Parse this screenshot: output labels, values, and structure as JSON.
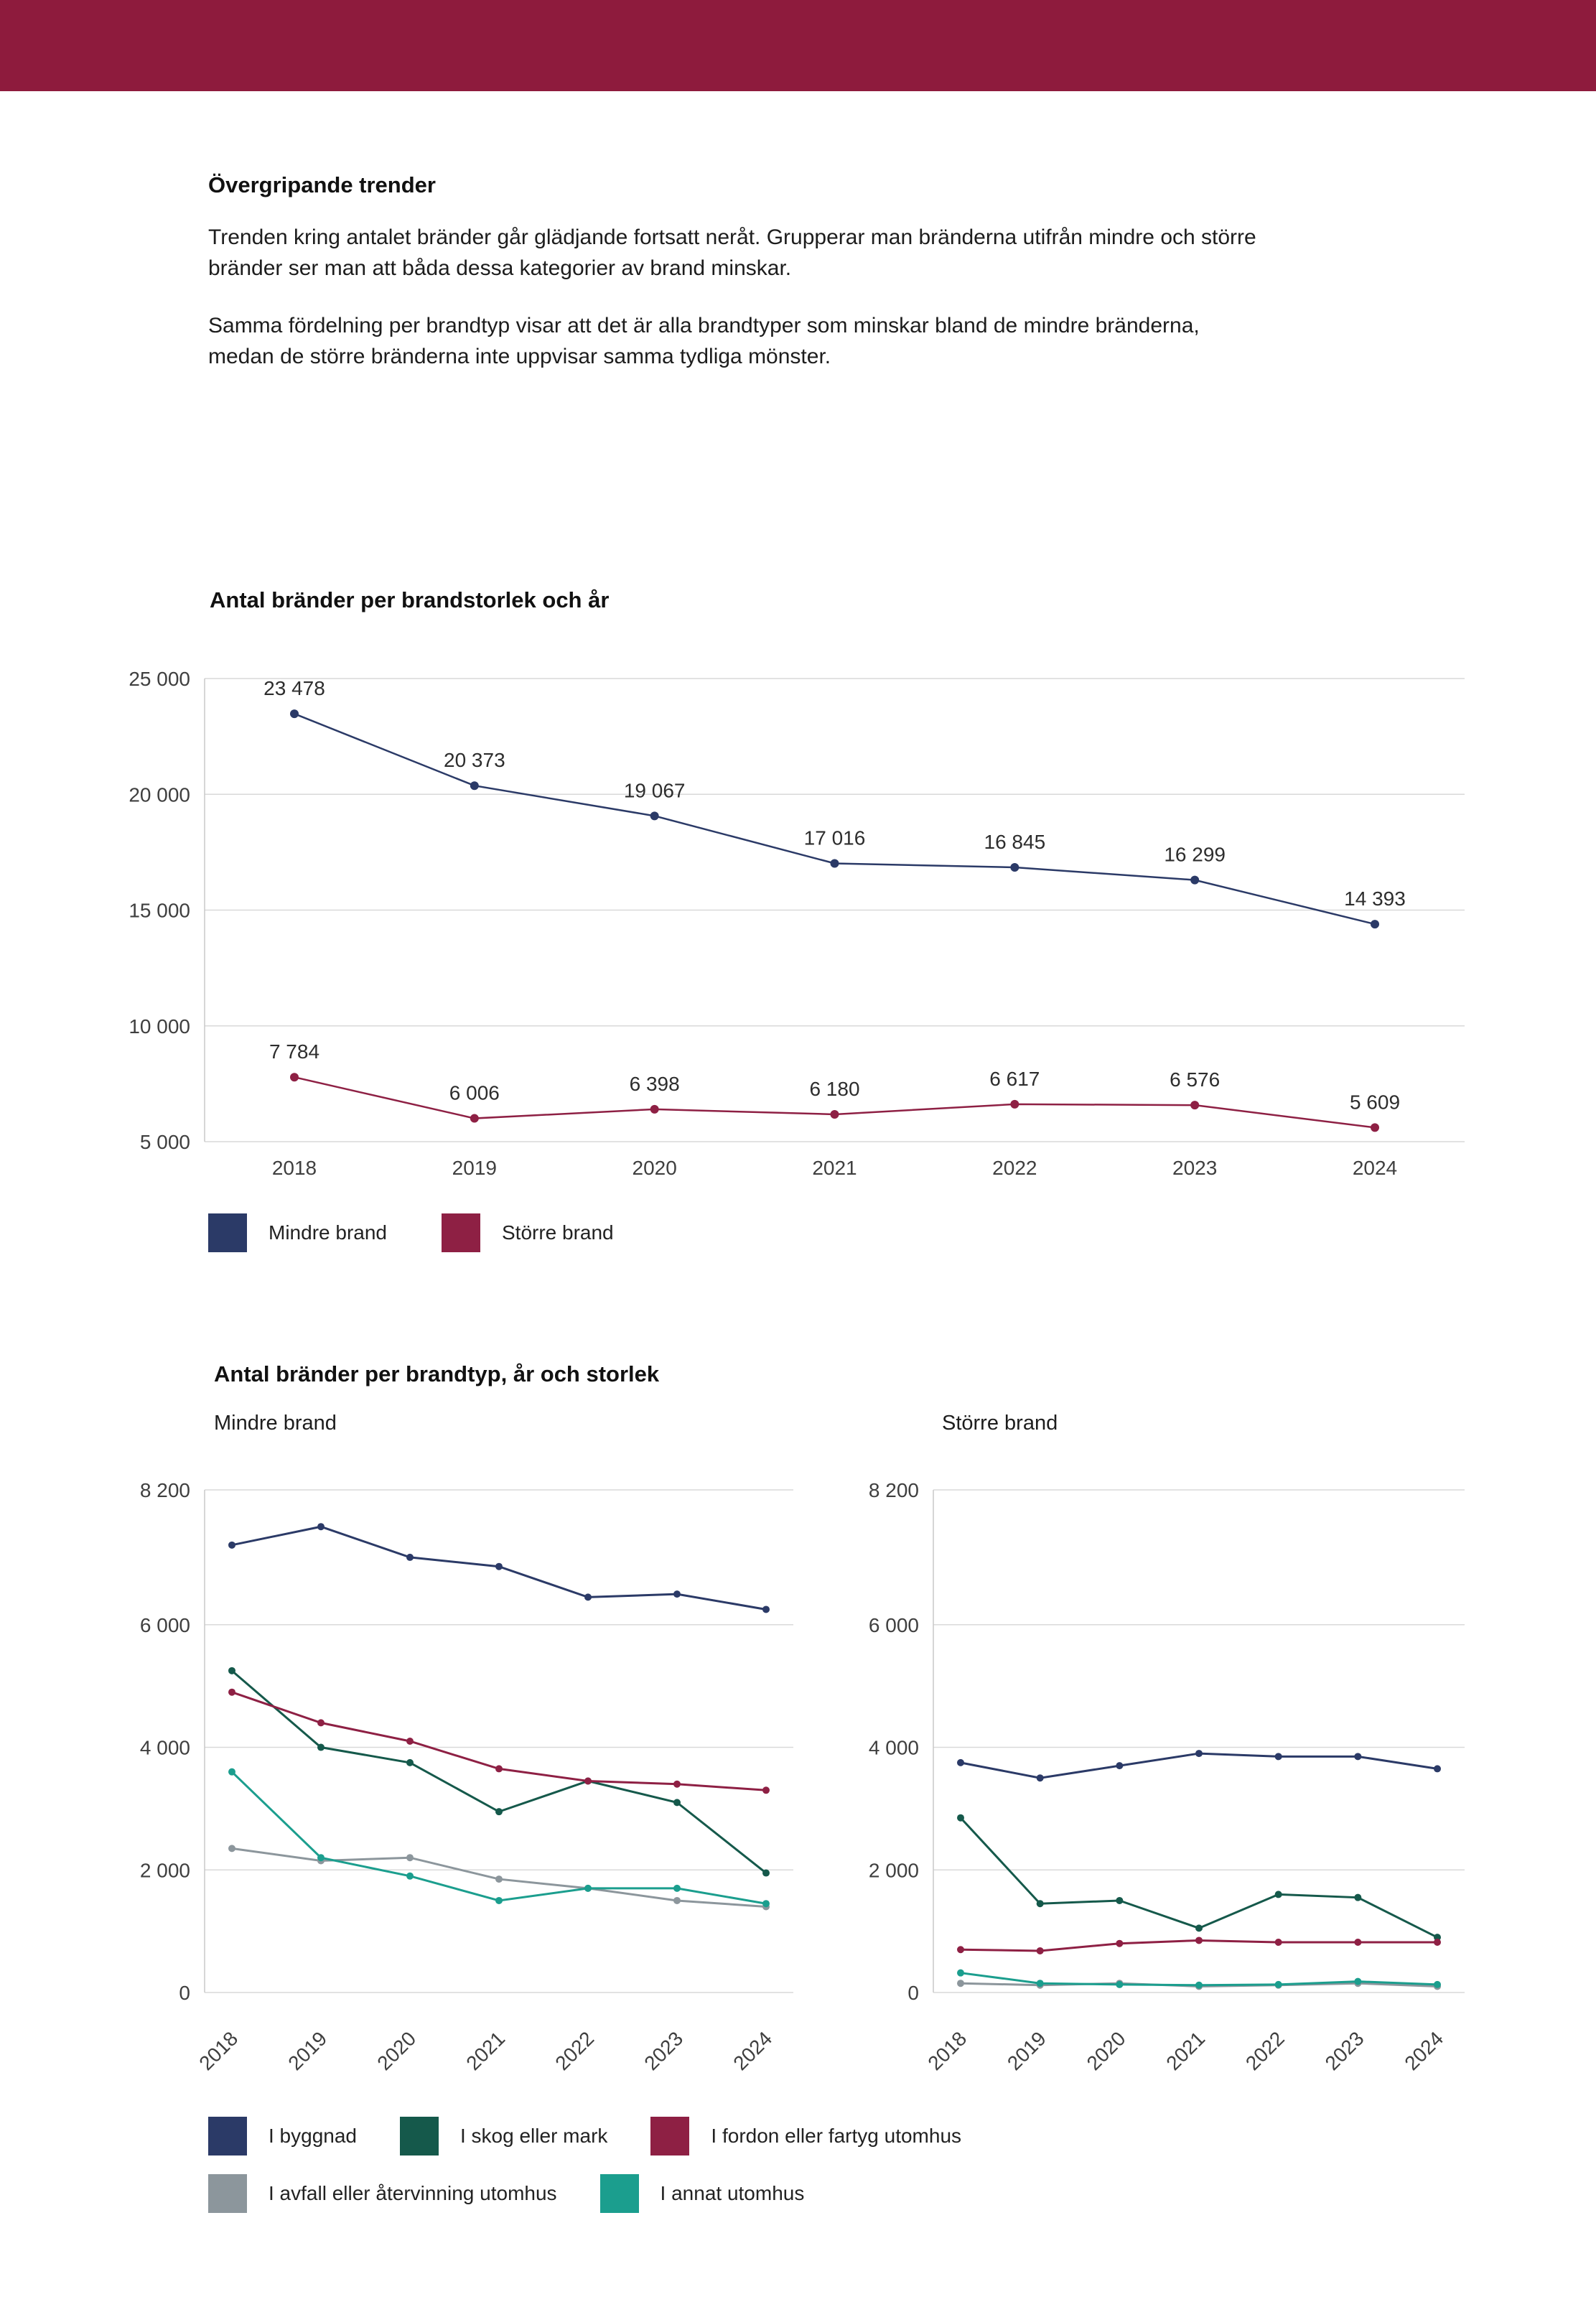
{
  "page": {
    "colors": {
      "header_bar": "#8e1b3d",
      "background": "#ffffff",
      "gridline": "#d9d9d9"
    }
  },
  "intro": {
    "heading": "Övergripande trender",
    "para1": "Trenden kring antalet bränder går glädjande fortsatt neråt. Grupperar man bränderna utifrån mindre och större bränder ser man att båda dessa kategorier av brand minskar.",
    "para2": "Samma fördelning per brandtyp visar att det är alla brandtyper som minskar bland de mindre bränderna, medan de större bränderna inte uppvisar samma tydliga mönster."
  },
  "chart_data": [
    {
      "type": "line",
      "title": "Antal bränder per brandstorlek och år",
      "x": [
        "2018",
        "2019",
        "2020",
        "2021",
        "2022",
        "2023",
        "2024"
      ],
      "ylim": [
        5000,
        25000
      ],
      "yticks": [
        5000,
        10000,
        15000,
        20000,
        25000
      ],
      "grid": true,
      "data_labels": true,
      "legend_position": "bottom-left",
      "series": [
        {
          "name": "Mindre brand",
          "color": "#2b3a67",
          "values": [
            23478,
            20373,
            19067,
            17016,
            16845,
            16299,
            14393
          ]
        },
        {
          "name": "Större brand",
          "color": "#8e2044",
          "values": [
            7784,
            6006,
            6398,
            6180,
            6617,
            6576,
            5609
          ]
        }
      ]
    },
    {
      "type": "line",
      "title": "Antal bränder per brandtyp, år och storlek",
      "x": [
        "2018",
        "2019",
        "2020",
        "2021",
        "2022",
        "2023",
        "2024"
      ],
      "ylim": [
        0,
        8200
      ],
      "yticks": [
        0,
        2000,
        4000,
        6000,
        8200
      ],
      "grid": true,
      "data_labels": false,
      "legend_position": "bottom-left",
      "panels": [
        {
          "subtitle": "Mindre brand",
          "series": [
            {
              "name": "I byggnad",
              "color": "#2b3a67",
              "values": [
                7300,
                7600,
                7100,
                6950,
                6450,
                6500,
                6250
              ]
            },
            {
              "name": "I skog eller mark",
              "color": "#15594b",
              "values": [
                5250,
                4000,
                3750,
                2950,
                3450,
                3100,
                1950
              ]
            },
            {
              "name": "I fordon eller fartyg utomhus",
              "color": "#8e2044",
              "values": [
                4900,
                4400,
                4100,
                3650,
                3450,
                3400,
                3300
              ]
            },
            {
              "name": "I avfall eller återvinning utomhus",
              "color": "#8c969c",
              "values": [
                2350,
                2150,
                2200,
                1850,
                1700,
                1500,
                1400
              ]
            },
            {
              "name": "I annat utomhus",
              "color": "#1b9e8e",
              "values": [
                3600,
                2200,
                1900,
                1500,
                1700,
                1700,
                1450
              ]
            }
          ]
        },
        {
          "subtitle": "Större brand",
          "series": [
            {
              "name": "I byggnad",
              "color": "#2b3a67",
              "values": [
                3750,
                3500,
                3700,
                3900,
                3850,
                3850,
                3650
              ]
            },
            {
              "name": "I skog eller mark",
              "color": "#15594b",
              "values": [
                2850,
                1450,
                1500,
                1050,
                1600,
                1550,
                900
              ]
            },
            {
              "name": "I fordon eller fartyg utomhus",
              "color": "#8e2044",
              "values": [
                700,
                680,
                800,
                850,
                820,
                820,
                820
              ]
            },
            {
              "name": "I avfall eller återvinning utomhus",
              "color": "#8c969c",
              "values": [
                150,
                120,
                150,
                100,
                120,
                150,
                100
              ]
            },
            {
              "name": "I annat utomhus",
              "color": "#1b9e8e",
              "values": [
                320,
                150,
                130,
                120,
                130,
                180,
                130
              ]
            }
          ]
        }
      ],
      "legend_rows": [
        [
          {
            "label": "I byggnad",
            "color": "#2b3a67"
          },
          {
            "label": "I skog eller mark",
            "color": "#15594b"
          },
          {
            "label": "I fordon eller fartyg utomhus",
            "color": "#8e2044"
          }
        ],
        [
          {
            "label": "I avfall eller återvinning utomhus",
            "color": "#8c969c"
          },
          {
            "label": "I annat utomhus",
            "color": "#1b9e8e"
          }
        ]
      ]
    }
  ]
}
